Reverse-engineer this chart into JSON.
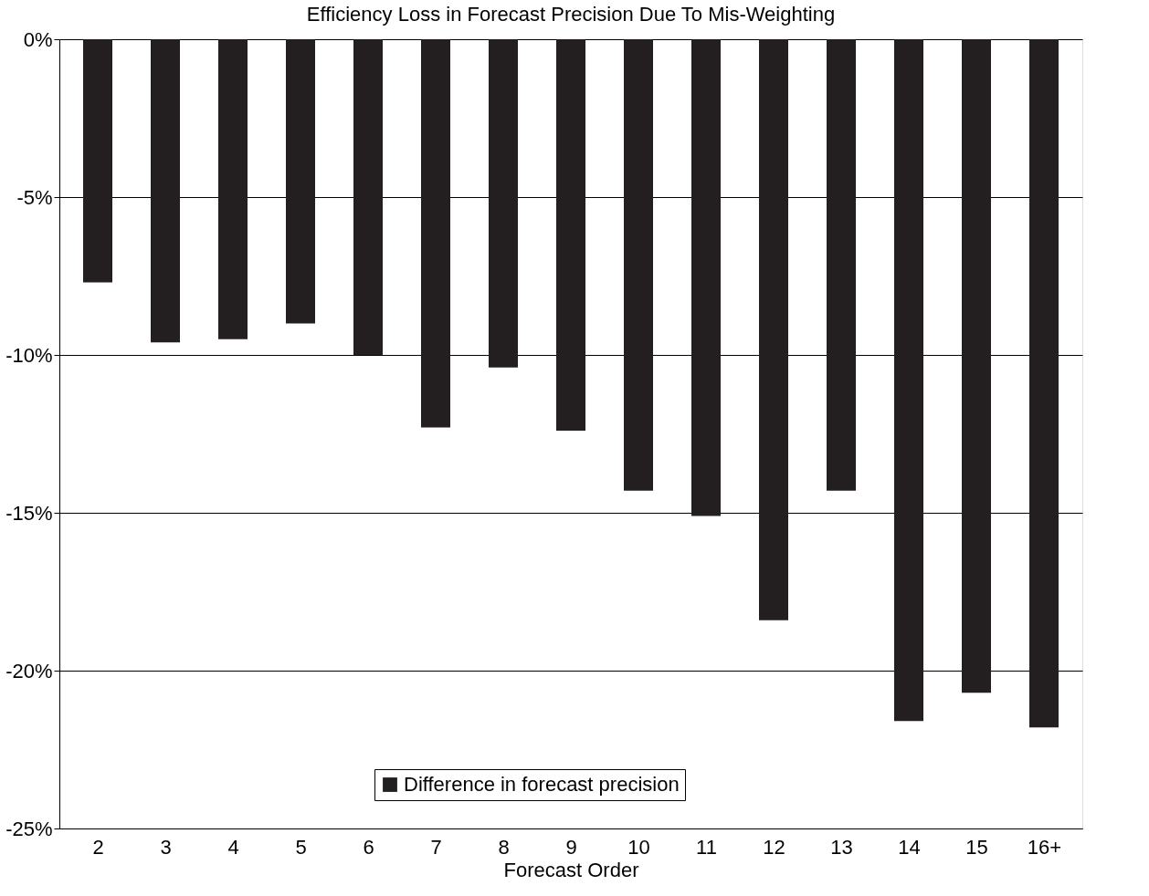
{
  "chart_data": {
    "type": "bar",
    "title": "Efficiency Loss in Forecast Precision Due To Mis-Weighting",
    "xlabel": "Forecast Order",
    "categories": [
      "2",
      "3",
      "4",
      "5",
      "6",
      "7",
      "8",
      "9",
      "10",
      "11",
      "12",
      "13",
      "14",
      "15",
      "16+"
    ],
    "series": [
      {
        "name": "Difference in forecast precision",
        "color": "#231f20",
        "values": [
          -7.7,
          -9.6,
          -9.5,
          -9.0,
          -10.0,
          -12.3,
          -10.4,
          -12.4,
          -14.3,
          -15.1,
          -18.4,
          -14.3,
          -21.6,
          -20.7,
          -21.8
        ]
      }
    ],
    "ylim": [
      -25,
      0
    ],
    "yticks": [
      {
        "value": -25,
        "label": "-25%"
      },
      {
        "value": -20,
        "label": "-20%"
      },
      {
        "value": -15,
        "label": "-15%"
      },
      {
        "value": -10,
        "label": "-10%"
      },
      {
        "value": -5,
        "label": "-5%"
      },
      {
        "value": 0,
        "label": "0%"
      }
    ],
    "grid": "y",
    "legend": "bottom"
  }
}
